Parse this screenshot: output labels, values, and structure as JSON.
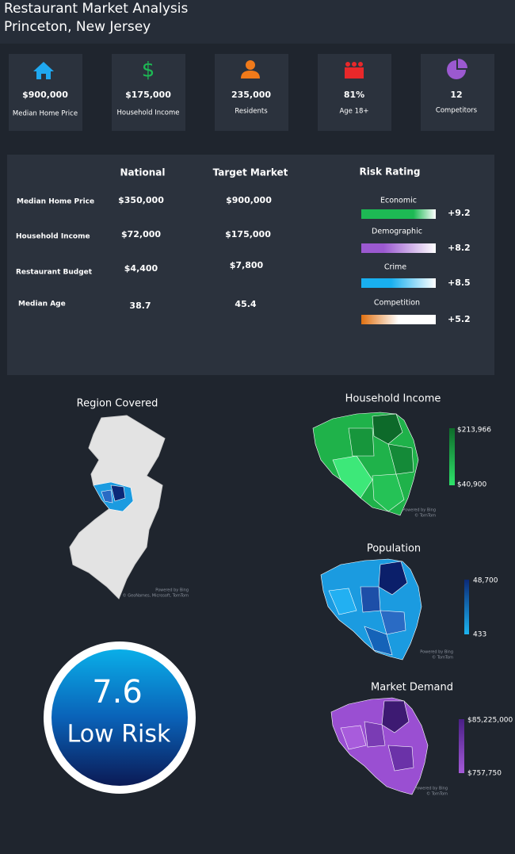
{
  "header": {
    "title": "Restaurant Market Analysis",
    "subtitle": "Princeton, New Jersey"
  },
  "kpis": [
    {
      "value": "$900,000",
      "label": "Median Home Price"
    },
    {
      "value": "$175,000",
      "label": "Household Income"
    },
    {
      "value": "235,000",
      "label": "Residents"
    },
    {
      "value": "81%",
      "label": "Age 18+"
    },
    {
      "value": "12",
      "label": "Competitors"
    }
  ],
  "comparison": {
    "headers": [
      "National",
      "Target Market"
    ],
    "rows": [
      {
        "label": "Median Home Price",
        "national": "$350,000",
        "target": "$900,000"
      },
      {
        "label": "Household Income",
        "national": "$72,000",
        "target": "$175,000"
      },
      {
        "label": "Restaurant Budget",
        "national": "$4,400",
        "target": "$7,800"
      },
      {
        "label": "Median Age",
        "national": "38.7",
        "target": "45.4"
      }
    ]
  },
  "risk_rating": {
    "title": "Risk Rating",
    "items": [
      {
        "label": "Economic",
        "score": "+9.2"
      },
      {
        "label": "Demographic",
        "score": "+8.2"
      },
      {
        "label": "Crime",
        "score": "+8.5"
      },
      {
        "label": "Competition",
        "score": "+5.2"
      }
    ]
  },
  "maps": [
    {
      "title": "Region Covered",
      "attribution": [
        "Powered by Bing",
        "© GeoNames, Microsoft, TomTom"
      ]
    },
    {
      "title": "Household Income",
      "legend_max": "$213,966",
      "legend_min": "$40,900",
      "attribution": [
        "Powered by Bing",
        "© TomTom"
      ]
    },
    {
      "title": "Population",
      "legend_max": "48,700",
      "legend_min": "433",
      "attribution": [
        "Powered by Bing",
        "© TomTom"
      ]
    },
    {
      "title": "Market Demand",
      "legend_max": "$85,225,000",
      "legend_min": "$757,750",
      "attribution": [
        "Powered by Bing",
        "© TomTom"
      ]
    }
  ],
  "score": {
    "value": "7.6",
    "label": "Low Risk"
  }
}
